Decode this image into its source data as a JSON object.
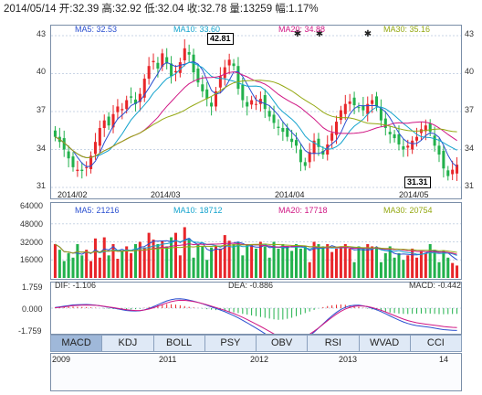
{
  "info": {
    "text": "2014/05/14 开:32.39  高:32.92  低:32.04  收:32.78  量:13259  幅:1.17%"
  },
  "price_legend": [
    {
      "label": "MA5: 32.53",
      "color": "#2a4fd0"
    },
    {
      "label": "MA10: 33.60",
      "color": "#13a3cd"
    },
    {
      "label": "MA20: 34.88",
      "color": "#d01784"
    },
    {
      "label": "MA30: 35.16",
      "color": "#94a812"
    }
  ],
  "volume_legend": [
    {
      "label": "MA5: 21216",
      "color": "#2a4fd0"
    },
    {
      "label": "MA10: 18712",
      "color": "#13a3cd"
    },
    {
      "label": "MA20: 17718",
      "color": "#d01784"
    },
    {
      "label": "MA30: 20754",
      "color": "#94a812"
    }
  ],
  "macd_legend": {
    "dif": "DIF: -1.106",
    "dea": "DEA: -0.886",
    "macd": "MACD: -0.442"
  },
  "price_axis": {
    "ticks": [
      "43",
      "40",
      "37",
      "34",
      "31"
    ]
  },
  "volume_axis": {
    "ticks": [
      "64000",
      "48000",
      "32000",
      "16000"
    ]
  },
  "macd_axis": {
    "ticks": [
      "1.759",
      "0.000",
      "-1.759"
    ]
  },
  "dates": [
    "2014/02",
    "2014/03",
    "2014/04",
    "2014/05"
  ],
  "callouts": {
    "high": "42.81",
    "low": "31.31"
  },
  "tabs": [
    {
      "label": "MACD",
      "active": true
    },
    {
      "label": "KDJ"
    },
    {
      "label": "BOLL"
    },
    {
      "label": "PSY"
    },
    {
      "label": "OBV"
    },
    {
      "label": "RSI"
    },
    {
      "label": "WVAD"
    },
    {
      "label": "CCI"
    }
  ],
  "navigator": {
    "years": [
      "2009",
      "2011",
      "2012",
      "2013",
      "14"
    ]
  },
  "colors": {
    "up": "#e8262a",
    "down": "#22b14c",
    "grid": "#c9d5e5",
    "border": "#7a8ea8"
  },
  "chart_data": {
    "type": "candlestick",
    "ylim": [
      31,
      43
    ],
    "closes": [
      35.0,
      34.6,
      34.0,
      33.3,
      32.6,
      32.4,
      32.3,
      32.6,
      33.5,
      34.6,
      35.7,
      36.3,
      35.9,
      36.8,
      37.4,
      37.2,
      37.9,
      38.1,
      37.6,
      38.4,
      39.6,
      40.6,
      41.0,
      40.4,
      41.6,
      40.8,
      39.8,
      40.2,
      40.9,
      42.0,
      41.5,
      40.1,
      39.3,
      38.6,
      38.0,
      37.4,
      38.6,
      39.8,
      40.5,
      41.1,
      40.6,
      38.8,
      37.9,
      37.4,
      37.9,
      37.6,
      38.0,
      37.2,
      36.6,
      36.1,
      35.7,
      35.4,
      35.0,
      34.6,
      34.3,
      33.0,
      32.7,
      33.8,
      34.7,
      34.2,
      33.6,
      34.4,
      35.3,
      36.2,
      37.1,
      37.6,
      37.8,
      37.5,
      37.3,
      37.1,
      37.6,
      37.9,
      37.4,
      36.3,
      35.7,
      35.2,
      34.9,
      34.4,
      34.0,
      34.3,
      34.7,
      35.0,
      35.6,
      35.9,
      35.4,
      34.3,
      33.6,
      32.5,
      31.9,
      32.4,
      32.8
    ],
    "volume_values": [
      30000,
      25000,
      15000,
      22000,
      18000,
      30000,
      20000,
      25000,
      15000,
      35000,
      18000,
      36000,
      20000,
      30000,
      17000,
      24000,
      28000,
      22000,
      30000,
      32000,
      27000,
      40000,
      34000,
      30000,
      33000,
      28000,
      36000,
      40000,
      20000,
      45000,
      35000,
      18000,
      30000,
      28000,
      16000,
      27000,
      28000,
      26000,
      38000,
      33000,
      30000,
      32000,
      20000,
      29000,
      30000,
      26000,
      32000,
      28000,
      18000,
      32000,
      26000,
      30000,
      28000,
      24000,
      30000,
      26000,
      28000,
      14000,
      32000,
      30000,
      28000,
      30000,
      23000,
      26000,
      28000,
      30000,
      26000,
      14000,
      28000,
      26000,
      30000,
      28000,
      27000,
      14000,
      22000,
      28000,
      18000,
      22000,
      16000,
      20000,
      26000,
      18000,
      24000,
      22000,
      30000,
      25000,
      14000,
      24000,
      18000,
      13259,
      11000
    ],
    "macd_values": [
      0.05,
      0.07,
      0.09,
      0.11,
      0.12,
      0.1,
      0.09,
      0.08,
      0.06,
      0.03,
      0.0,
      -0.03,
      -0.05,
      -0.07,
      -0.09,
      -0.11,
      -0.12,
      -0.1,
      -0.08,
      -0.05,
      0.02,
      0.09,
      0.16,
      0.23,
      0.28,
      0.31,
      0.3,
      0.27,
      0.22,
      0.16,
      0.1,
      0.05,
      0.01,
      -0.03,
      -0.08,
      -0.12,
      -0.15,
      -0.18,
      -0.22,
      -0.27,
      -0.32,
      -0.38,
      -0.44,
      -0.5,
      -0.56,
      -0.62,
      -0.68,
      -0.74,
      -0.8,
      -0.86,
      -0.9,
      -0.88,
      -0.82,
      -0.74,
      -0.62,
      -0.5,
      -0.38,
      -0.26,
      -0.14,
      -0.02,
      0.08,
      0.16,
      0.22,
      0.26,
      0.28,
      0.26,
      0.22,
      0.16,
      0.1,
      0.03,
      -0.04,
      -0.1,
      -0.16,
      -0.22,
      -0.28,
      -0.34,
      -0.38,
      -0.42,
      -0.44,
      -0.45,
      -0.44,
      -0.43,
      -0.42,
      -0.41,
      -0.42,
      -0.44,
      -0.46,
      -0.47,
      -0.46,
      -0.45,
      -0.44
    ]
  }
}
